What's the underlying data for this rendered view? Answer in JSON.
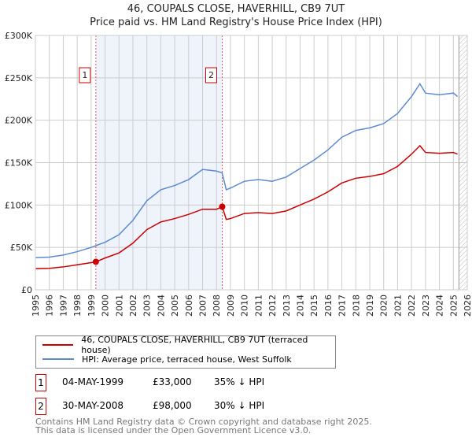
{
  "title": "46, COUPALS CLOSE, HAVERHILL, CB9 7UT",
  "subtitle": "Price paid vs. HM Land Registry's House Price Index (HPI)",
  "chart_data": {
    "type": "line",
    "title": "46, COUPALS CLOSE, HAVERHILL, CB9 7UT",
    "subtitle": "Price paid vs. HM Land Registry's House Price Index (HPI)",
    "xlim": [
      1995,
      2026
    ],
    "ylim": [
      0,
      300000
    ],
    "x_ticks": [
      "1995",
      "1996",
      "1997",
      "1998",
      "1999",
      "2000",
      "2001",
      "2002",
      "2003",
      "2004",
      "2005",
      "2006",
      "2007",
      "2008",
      "2009",
      "2010",
      "2011",
      "2012",
      "2013",
      "2014",
      "2015",
      "2016",
      "2017",
      "2018",
      "2019",
      "2020",
      "2021",
      "2022",
      "2023",
      "2024",
      "2025",
      "2026"
    ],
    "y_ticks": [
      {
        "v": 0,
        "label": "£0"
      },
      {
        "v": 50000,
        "label": "£50K"
      },
      {
        "v": 100000,
        "label": "£100K"
      },
      {
        "v": 150000,
        "label": "£150K"
      },
      {
        "v": 200000,
        "label": "£200K"
      },
      {
        "v": 250000,
        "label": "£250K"
      },
      {
        "v": 300000,
        "label": "£300K"
      }
    ],
    "grid": true,
    "shaded_range": [
      1999.34,
      2008.41
    ],
    "forecast_hatch_from": 2025.4,
    "series": [
      {
        "name": "46, COUPALS CLOSE, HAVERHILL, CB9 7UT (terraced house)",
        "color": "#cc0000",
        "x": [
          1995,
          1996,
          1997,
          1998,
          1999,
          1999.34,
          2000,
          2001,
          2002,
          2003,
          2004,
          2005,
          2006,
          2007,
          2008,
          2008.41,
          2008.7,
          2009,
          2010,
          2011,
          2012,
          2013,
          2014,
          2015,
          2016,
          2017,
          2018,
          2019,
          2020,
          2021,
          2022,
          2022.6,
          2023,
          2024,
          2025,
          2025.3
        ],
        "y": [
          25000,
          25300,
          27000,
          29500,
          32000,
          33000,
          37500,
          43500,
          55000,
          71000,
          80000,
          84000,
          89000,
          95000,
          95000,
          98000,
          83000,
          84000,
          90000,
          91000,
          90000,
          93000,
          100000,
          107000,
          115500,
          126000,
          131600,
          133700,
          137000,
          145600,
          160000,
          170000,
          162000,
          161000,
          162000,
          160000
        ]
      },
      {
        "name": "HPI: Average price, terraced house, West Suffolk",
        "color": "#5b8bd0",
        "x": [
          1995,
          1996,
          1997,
          1998,
          1999,
          2000,
          2001,
          2002,
          2003,
          2004,
          2005,
          2006,
          2007,
          2008,
          2008.4,
          2008.7,
          2009,
          2010,
          2011,
          2012,
          2013,
          2014,
          2015,
          2016,
          2017,
          2018,
          2019,
          2020,
          2021,
          2022,
          2022.6,
          2023,
          2024,
          2025,
          2025.3
        ],
        "y": [
          38000,
          38500,
          41000,
          45000,
          50000,
          56000,
          65000,
          82000,
          105000,
          118000,
          123000,
          130000,
          142000,
          140000,
          138000,
          118000,
          120000,
          128000,
          130000,
          128000,
          133000,
          143000,
          153000,
          165000,
          180000,
          188000,
          191000,
          196000,
          208000,
          228000,
          243000,
          232000,
          230000,
          232000,
          228000
        ]
      }
    ],
    "sales": [
      {
        "label": "1",
        "x": 1999.34,
        "y": 33000
      },
      {
        "label": "2",
        "x": 2008.41,
        "y": 98000
      }
    ]
  },
  "legend": {
    "red": "46, COUPALS CLOSE, HAVERHILL, CB9 7UT (terraced house)",
    "blue": "HPI: Average price, terraced house, West Suffolk"
  },
  "transactions": [
    {
      "num": "1",
      "date": "04-MAY-1999",
      "price": "£33,000",
      "hpi": "35% ↓ HPI"
    },
    {
      "num": "2",
      "date": "30-MAY-2008",
      "price": "£98,000",
      "hpi": "30% ↓ HPI"
    }
  ],
  "footer": [
    "Contains HM Land Registry data © Crown copyright and database right 2025.",
    "This data is licensed under the Open Government Licence v3.0."
  ]
}
